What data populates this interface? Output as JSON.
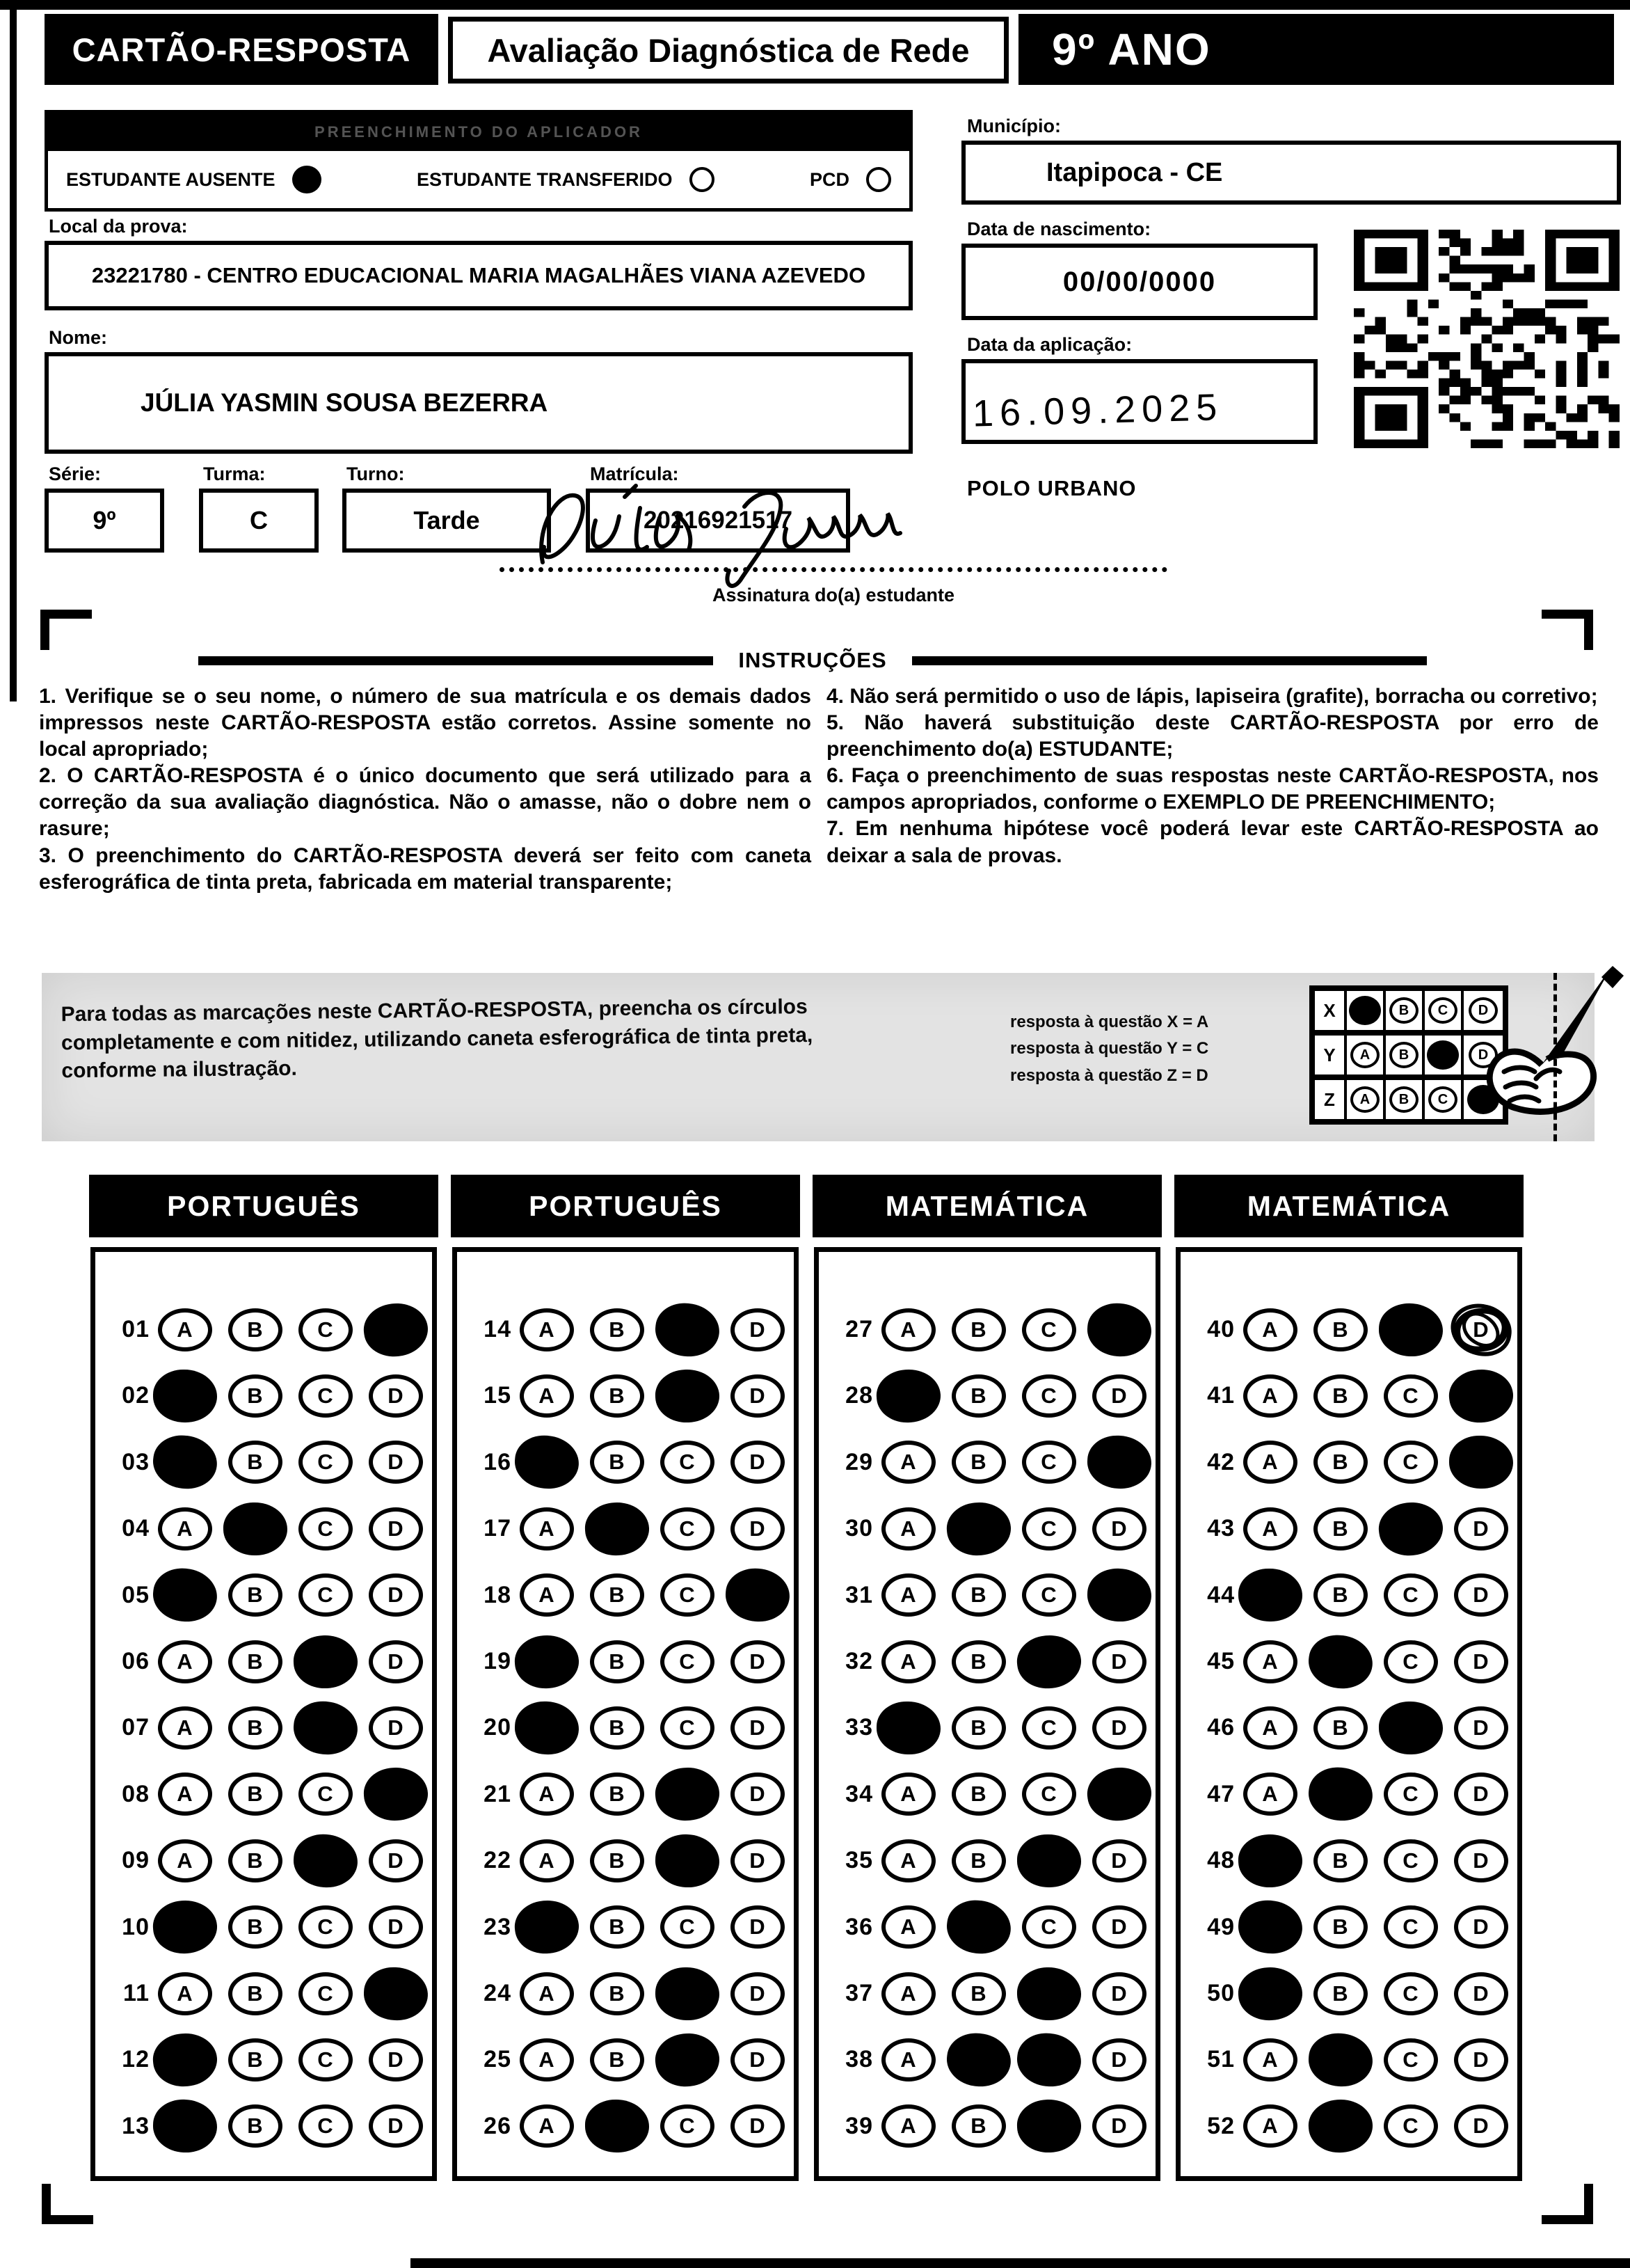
{
  "header": {
    "card_title": "CARTÃO-RESPOSTA",
    "exam_title": "Avaliação Diagnóstica de Rede",
    "grade": "9º ANO"
  },
  "applicator": {
    "strip_label": "PREENCHIMENTO DO APLICADOR",
    "options": [
      {
        "label": "ESTUDANTE AUSENTE",
        "filled": true
      },
      {
        "label": "ESTUDANTE TRANSFERIDO",
        "filled": false
      },
      {
        "label": "PCD",
        "filled": false
      }
    ]
  },
  "fields": {
    "local_label": "Local da prova:",
    "local_value": "23221780 - CENTRO EDUCACIONAL MARIA MAGALHÃES VIANA AZEVEDO",
    "nome_label": "Nome:",
    "nome_value": "JÚLIA YASMIN SOUSA BEZERRA",
    "serie_label": "Série:",
    "serie_value": "9º",
    "turma_label": "Turma:",
    "turma_value": "C",
    "turno_label": "Turno:",
    "turno_value": "Tarde",
    "matricula_label": "Matrícula:",
    "matricula_value": "20216921517",
    "municipio_label": "Município:",
    "municipio_value": "Itapipoca - CE",
    "nascimento_label": "Data de nascimento:",
    "nascimento_value": "00/00/0000",
    "aplicacao_label": "Data da aplicação:",
    "aplicacao_value": "16.09.2025",
    "polo": "POLO URBANO",
    "assinatura_caption": "Assinatura do(a) estudante",
    "assinatura_text": "Júlia Yasmin"
  },
  "instructions": {
    "title": "INSTRUÇÕES",
    "left": [
      "1. Verifique se o seu nome, o número de sua matrícula e os demais dados impressos neste CARTÃO-RESPOSTA estão corretos. Assine somente no local apropriado;",
      "2. O CARTÃO-RESPOSTA é o único documento que será utilizado para a correção da sua avaliação diagnóstica. Não o amasse, não o dobre nem o rasure;",
      "3. O preenchimento do CARTÃO-RESPOSTA deverá ser feito com caneta esferográfica de tinta preta, fabricada em material transparente;"
    ],
    "right": [
      "4. Não será permitido o uso de lápis, lapiseira (grafite), borracha ou corretivo;",
      "5. Não haverá substituição deste CARTÃO-RESPOSTA por erro de preenchimento do(a) ESTUDANTE;",
      "6. Faça o preenchimento de suas respostas neste CARTÃO-RESPOSTA, nos campos apropriados, conforme o EXEMPLO DE PREENCHIMENTO;",
      "7. Em nenhuma hipótese você poderá levar este CARTÃO-RESPOSTA ao deixar a sala de provas."
    ]
  },
  "example": {
    "text": "Para todas as marcações neste CARTÃO-RESPOSTA, preencha os círculos completamente e com nitidez, utilizando caneta esferográfica de tinta preta, conforme na ilustração.",
    "legend": [
      "resposta à questão X = A",
      "resposta à questão Y = C",
      "resposta à questão Z = D"
    ],
    "options": [
      "A",
      "B",
      "C",
      "D"
    ],
    "grid": [
      {
        "row": "X",
        "filled": "A"
      },
      {
        "row": "Y",
        "filled": "C"
      },
      {
        "row": "Z",
        "filled": "D"
      }
    ]
  },
  "answers": {
    "options": [
      "A",
      "B",
      "C",
      "D"
    ],
    "columns": [
      {
        "subject": "PORTUGUÊS",
        "questions": [
          {
            "num": "01",
            "marked": [
              "D"
            ]
          },
          {
            "num": "02",
            "marked": [
              "A"
            ]
          },
          {
            "num": "03",
            "marked": [
              "A"
            ]
          },
          {
            "num": "04",
            "marked": [
              "B"
            ]
          },
          {
            "num": "05",
            "marked": [
              "A"
            ]
          },
          {
            "num": "06",
            "marked": [
              "C"
            ]
          },
          {
            "num": "07",
            "marked": [
              "C"
            ]
          },
          {
            "num": "08",
            "marked": [
              "D"
            ]
          },
          {
            "num": "09",
            "marked": [
              "C"
            ]
          },
          {
            "num": "10",
            "marked": [
              "A"
            ]
          },
          {
            "num": "11",
            "marked": [
              "D"
            ]
          },
          {
            "num": "12",
            "marked": [
              "A"
            ]
          },
          {
            "num": "13",
            "marked": [
              "A"
            ]
          }
        ]
      },
      {
        "subject": "PORTUGUÊS",
        "questions": [
          {
            "num": "14",
            "marked": [
              "C"
            ]
          },
          {
            "num": "15",
            "marked": [
              "C"
            ]
          },
          {
            "num": "16",
            "marked": [
              "A"
            ]
          },
          {
            "num": "17",
            "marked": [
              "B"
            ]
          },
          {
            "num": "18",
            "marked": [
              "D"
            ]
          },
          {
            "num": "19",
            "marked": [
              "A"
            ]
          },
          {
            "num": "20",
            "marked": [
              "A"
            ]
          },
          {
            "num": "21",
            "marked": [
              "C"
            ]
          },
          {
            "num": "22",
            "marked": [
              "C"
            ]
          },
          {
            "num": "23",
            "marked": [
              "A"
            ]
          },
          {
            "num": "24",
            "marked": [
              "C"
            ]
          },
          {
            "num": "25",
            "marked": [
              "C"
            ]
          },
          {
            "num": "26",
            "marked": [
              "B"
            ]
          }
        ]
      },
      {
        "subject": "MATEMÁTICA",
        "questions": [
          {
            "num": "27",
            "marked": [
              "D"
            ]
          },
          {
            "num": "28",
            "marked": [
              "A"
            ]
          },
          {
            "num": "29",
            "marked": [
              "D"
            ]
          },
          {
            "num": "30",
            "marked": [
              "B"
            ]
          },
          {
            "num": "31",
            "marked": [
              "D"
            ]
          },
          {
            "num": "32",
            "marked": [
              "C"
            ]
          },
          {
            "num": "33",
            "marked": [
              "A"
            ]
          },
          {
            "num": "34",
            "marked": [
              "D"
            ]
          },
          {
            "num": "35",
            "marked": [
              "C"
            ]
          },
          {
            "num": "36",
            "marked": [
              "B"
            ]
          },
          {
            "num": "37",
            "marked": [
              "C"
            ]
          },
          {
            "num": "38",
            "marked": [
              "B",
              "C"
            ]
          },
          {
            "num": "39",
            "marked": [
              "C"
            ]
          }
        ]
      },
      {
        "subject": "MATEMÁTICA",
        "questions": [
          {
            "num": "40",
            "marked": [
              "C"
            ],
            "scribbled": [
              "D"
            ]
          },
          {
            "num": "41",
            "marked": [
              "D"
            ]
          },
          {
            "num": "42",
            "marked": [
              "D"
            ]
          },
          {
            "num": "43",
            "marked": [
              "C"
            ]
          },
          {
            "num": "44",
            "marked": [
              "A"
            ]
          },
          {
            "num": "45",
            "marked": [
              "B"
            ]
          },
          {
            "num": "46",
            "marked": [
              "C"
            ]
          },
          {
            "num": "47",
            "marked": [
              "B"
            ]
          },
          {
            "num": "48",
            "marked": [
              "A"
            ]
          },
          {
            "num": "49",
            "marked": [
              "A"
            ]
          },
          {
            "num": "50",
            "marked": [
              "A"
            ]
          },
          {
            "num": "51",
            "marked": [
              "B"
            ]
          },
          {
            "num": "52",
            "marked": [
              "B"
            ]
          }
        ]
      }
    ]
  }
}
